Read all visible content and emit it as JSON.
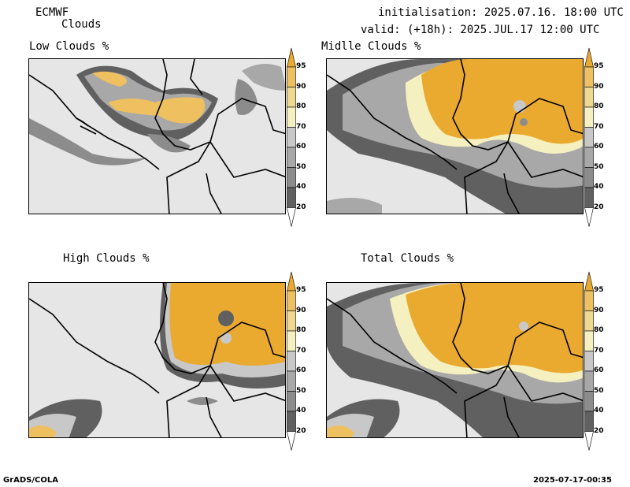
{
  "header": {
    "model": "ECMWF",
    "product": "Clouds",
    "initialisation": "initialisation: 2025.07.16. 18:00 UTC",
    "valid": "valid: (+18h): 2025.JUL.17 12:00 UTC"
  },
  "panels": [
    {
      "title": "Low Clouds %",
      "cover": "low"
    },
    {
      "title": "Midlle Clouds %",
      "cover": "mid"
    },
    {
      "title": "High Clouds %",
      "cover": "high"
    },
    {
      "title": "Total Clouds %",
      "cover": "total"
    }
  ],
  "colorbar": {
    "levels": [
      "20",
      "40",
      "50",
      "60",
      "70",
      "80",
      "90",
      "95"
    ],
    "colors": {
      "below20": "#ffffff",
      "20-40": "#606060",
      "40-50": "#8c8c8c",
      "50-60": "#a8a8a8",
      "60-70": "#c8c8c8",
      "70-80": "#f5f0c0",
      "80-90": "#f0d890",
      "90-95": "#eec060",
      "above95": "#eaaa30"
    }
  },
  "footer": {
    "left": "GrADS/COLA",
    "right": "2025-07-17-00:35"
  }
}
